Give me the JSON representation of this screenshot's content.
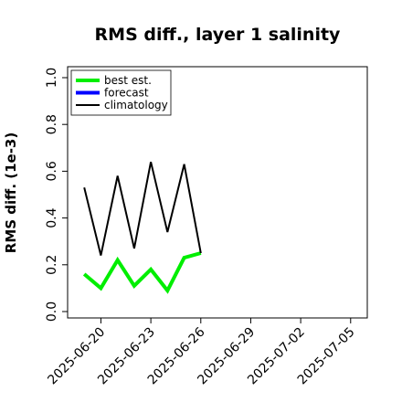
{
  "chart_data": {
    "type": "line",
    "title": "RMS diff., layer 1 salinity",
    "xlabel": "",
    "ylabel": "RMS diff. (1e-3)",
    "ylim": [
      0,
      1.0
    ],
    "xlim": [
      "2025-06-18",
      "2025-07-06"
    ],
    "grid": false,
    "legend_position": "top-left",
    "yticks": [
      {
        "value": 0.0,
        "label": "0.0"
      },
      {
        "value": 0.2,
        "label": "0.2"
      },
      {
        "value": 0.4,
        "label": "0.4"
      },
      {
        "value": 0.6,
        "label": "0.6"
      },
      {
        "value": 0.8,
        "label": "0.8"
      },
      {
        "value": 1.0,
        "label": "1.0"
      }
    ],
    "xticks": [
      {
        "date": "2025-06-20",
        "label": "2025-06-20",
        "color": "#000000"
      },
      {
        "date": "2025-06-23",
        "label": "2025-06-23",
        "color": "#000000"
      },
      {
        "date": "2025-06-26",
        "label": "2025-06-26",
        "color": "#228b22"
      },
      {
        "date": "2025-06-29",
        "label": "2025-06-29",
        "color": "#000000"
      },
      {
        "date": "2025-07-02",
        "label": "2025-07-02",
        "color": "#000000"
      },
      {
        "date": "2025-07-05",
        "label": "2025-07-05",
        "color": "#000000"
      }
    ],
    "series": [
      {
        "name": "best est.",
        "color": "#00ee00",
        "x": [
          "2025-06-19",
          "2025-06-20",
          "2025-06-21",
          "2025-06-22",
          "2025-06-23",
          "2025-06-24",
          "2025-06-25",
          "2025-06-26"
        ],
        "values": [
          0.16,
          0.1,
          0.22,
          0.11,
          0.18,
          0.09,
          0.23,
          0.25
        ]
      },
      {
        "name": "forecast",
        "color": "#0000ff",
        "x": [],
        "values": []
      },
      {
        "name": "climatology",
        "color": "#000000",
        "x": [
          "2025-06-19",
          "2025-06-20",
          "2025-06-21",
          "2025-06-22",
          "2025-06-23",
          "2025-06-24",
          "2025-06-25",
          "2025-06-26"
        ],
        "values": [
          0.53,
          0.24,
          0.58,
          0.27,
          0.64,
          0.34,
          0.63,
          0.25
        ]
      }
    ]
  }
}
